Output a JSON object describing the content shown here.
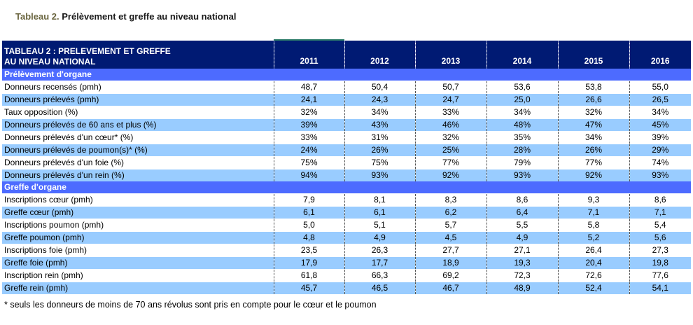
{
  "caption": {
    "label": "Tableau 2.",
    "title": " Prélèvement et greffe au niveau national"
  },
  "table": {
    "header_line1": "TABLEAU 2 : PRELEVEMENT ET GREFFE",
    "header_line2": "AU NIVEAU NATIONAL",
    "years": [
      "2011",
      "2012",
      "2013",
      "2014",
      "2015",
      "2016"
    ],
    "sections": [
      {
        "title": "Prélèvement d'organe",
        "rows": [
          {
            "label": "Donneurs recensés (pmh)",
            "values": [
              "48,7",
              "50,4",
              "50,7",
              "53,6",
              "53,8",
              "55,0"
            ]
          },
          {
            "label": "Donneurs prélevés (pmh)",
            "values": [
              "24,1",
              "24,3",
              "24,7",
              "25,0",
              "26,6",
              "26,5"
            ]
          },
          {
            "label": "Taux opposition (%)",
            "values": [
              "32%",
              "34%",
              "33%",
              "34%",
              "32%",
              "34%"
            ]
          },
          {
            "label": "Donneurs prélevés de 60 ans et plus (%)",
            "values": [
              "39%",
              "43%",
              "46%",
              "48%",
              "47%",
              "45%"
            ]
          },
          {
            "label": "Donneurs prélevés d'un cœur* (%)",
            "values": [
              "33%",
              "31%",
              "32%",
              "35%",
              "34%",
              "39%"
            ]
          },
          {
            "label": "Donneurs prélevés de poumon(s)* (%)",
            "values": [
              "24%",
              "26%",
              "25%",
              "28%",
              "26%",
              "29%"
            ]
          },
          {
            "label": "Donneurs prélevés d'un foie (%)",
            "values": [
              "75%",
              "75%",
              "77%",
              "79%",
              "77%",
              "74%"
            ]
          },
          {
            "label": "Donneurs prélevés d'un rein (%)",
            "values": [
              "94%",
              "93%",
              "92%",
              "93%",
              "92%",
              "93%"
            ]
          }
        ]
      },
      {
        "title": "Greffe d'organe",
        "rows": [
          {
            "label": "Inscriptions cœur (pmh)",
            "values": [
              "7,9",
              "8,1",
              "8,3",
              "8,6",
              "9,3",
              "8,6"
            ]
          },
          {
            "label": "Greffe cœur (pmh)",
            "values": [
              "6,1",
              "6,1",
              "6,2",
              "6,4",
              "7,1",
              "7,1"
            ]
          },
          {
            "label": "Inscriptions poumon (pmh)",
            "values": [
              "5,0",
              "5,1",
              "5,7",
              "5,5",
              "5,8",
              "5,4"
            ]
          },
          {
            "label": "Greffe poumon (pmh)",
            "values": [
              "4,8",
              "4,9",
              "4,5",
              "4,9",
              "5,2",
              "5,6"
            ]
          },
          {
            "label": "Inscriptions foie (pmh)",
            "values": [
              "23,5",
              "26,3",
              "27,7",
              "27,1",
              "26,4",
              "27,3"
            ]
          },
          {
            "label": "Greffe foie (pmh)",
            "values": [
              "17,9",
              "17,7",
              "18,9",
              "19,3",
              "20,4",
              "19,8"
            ]
          },
          {
            "label": "Inscription rein (pmh)",
            "values": [
              "61,8",
              "66,3",
              "69,2",
              "72,3",
              "72,6",
              "77,6"
            ]
          },
          {
            "label": "Greffe rein (pmh)",
            "values": [
              "45,7",
              "46,5",
              "46,7",
              "48,9",
              "52,4",
              "54,1"
            ]
          }
        ]
      }
    ]
  },
  "footnote": "* seuls les donneurs de moins de 70 ans révolus sont pris en compte pour  le cœur et le poumon",
  "colors": {
    "header_bg": "#001a73",
    "section_bg": "#4d6bff",
    "row_alt_bg": "#99ccff"
  }
}
